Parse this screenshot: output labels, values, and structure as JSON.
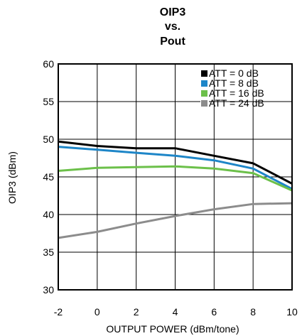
{
  "chart_data": {
    "type": "line",
    "title_lines": [
      "OIP3",
      "vs.",
      "Pout"
    ],
    "xlabel": "OUTPUT POWER (dBm/tone)",
    "ylabel": "OIP3 (dBm)",
    "xlim": [
      -2,
      10
    ],
    "ylim": [
      30,
      60
    ],
    "x_ticks": [
      "-2",
      "0",
      "2",
      "4",
      "6",
      "8",
      "10"
    ],
    "y_ticks": [
      "30",
      "35",
      "40",
      "45",
      "50",
      "55",
      "60"
    ],
    "grid": true,
    "legend_position": "top-right",
    "series": [
      {
        "name": "ATT = 0 dB",
        "color": "#000000",
        "x": [
          -2,
          0,
          2,
          4,
          6,
          8,
          10
        ],
        "y": [
          49.7,
          49.1,
          48.8,
          48.8,
          47.8,
          46.8,
          44.1
        ]
      },
      {
        "name": "ATT = 8 dB",
        "color": "#1e86c8",
        "x": [
          -2,
          0,
          2,
          4,
          6,
          8,
          10
        ],
        "y": [
          49.0,
          48.6,
          48.2,
          47.8,
          47.2,
          46.1,
          43.4
        ]
      },
      {
        "name": "ATT = 16 dB",
        "color": "#6cc04a",
        "x": [
          -2,
          0,
          2,
          4,
          6,
          8,
          10
        ],
        "y": [
          45.8,
          46.2,
          46.3,
          46.4,
          46.1,
          45.5,
          43.2
        ]
      },
      {
        "name": "ATT = 24 dB",
        "color": "#8c8c8c",
        "x": [
          -2,
          0,
          2,
          4,
          6,
          8,
          10
        ],
        "y": [
          36.9,
          37.7,
          38.8,
          39.8,
          40.7,
          41.4,
          41.5
        ]
      }
    ]
  }
}
